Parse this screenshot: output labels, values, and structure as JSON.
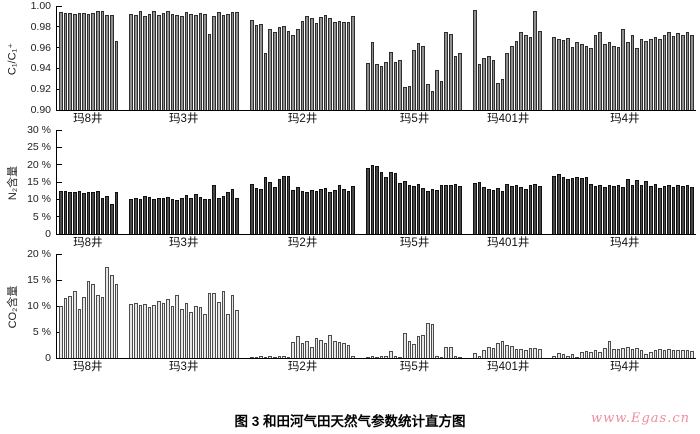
{
  "page": {
    "caption": "图 3  和田河气田天然气参数统计直方图",
    "watermark": "www.Egas.cn"
  },
  "colors": {
    "panel1_bar_fill": "#8f8f8f",
    "panel1_bar_edge": "#2e2e2e",
    "panel2_bar_fill": "#474747",
    "panel2_bar_edge": "#101010",
    "panel3_bar_fill": "#e6e6e6",
    "panel3_bar_edge": "#4c4c4c",
    "axis": "#000000",
    "watermark": "#ee8e9c"
  },
  "chart_data": {
    "type": "bar",
    "title": "图 3 和田河气田天然气参数统计直方图",
    "legend": "none",
    "grid": false,
    "categories": [
      "玛8井",
      "玛3井",
      "玛2井",
      "玛5井",
      "玛401井",
      "玛4井"
    ],
    "panels": [
      {
        "name": "c1-ratio",
        "ylabel": "C₁/C₁⁺",
        "ylim": [
          0.9,
          1.0
        ],
        "yticks": [
          {
            "v": 1.0,
            "label": "1.00"
          },
          {
            "v": 0.98,
            "label": "0.98"
          },
          {
            "v": 0.96,
            "label": "0.96"
          },
          {
            "v": 0.94,
            "label": "0.94"
          },
          {
            "v": 0.92,
            "label": "0.92"
          },
          {
            "v": 0.9,
            "label": "0.90"
          }
        ],
        "bar_fill": "#8f8f8f",
        "bar_edge": "#2e2e2e",
        "texture": "none",
        "series": [
          {
            "name": "玛8井",
            "values": [
              0.994,
              0.993,
              0.993,
              0.992,
              0.993,
              0.993,
              0.992,
              0.993,
              0.995,
              0.995,
              0.991,
              0.991,
              0.966
            ]
          },
          {
            "name": "玛3井",
            "values": [
              0.992,
              0.991,
              0.995,
              0.99,
              0.992,
              0.995,
              0.991,
              0.993,
              0.995,
              0.992,
              0.991,
              0.99,
              0.994,
              0.992,
              0.991,
              0.993,
              0.992,
              0.973,
              0.99,
              0.994,
              0.991,
              0.992,
              0.994,
              0.994
            ]
          },
          {
            "name": "玛2井",
            "values": [
              0.987,
              0.982,
              0.983,
              0.955,
              0.978,
              0.975,
              0.98,
              0.981,
              0.976,
              0.972,
              0.978,
              0.986,
              0.99,
              0.988,
              0.984,
              0.989,
              0.991,
              0.988,
              0.985,
              0.986,
              0.985,
              0.985,
              0.99
            ]
          },
          {
            "name": "玛5井",
            "values": [
              0.945,
              0.965,
              0.944,
              0.942,
              0.946,
              0.956,
              0.946,
              0.948,
              0.922,
              0.923,
              0.958,
              0.964,
              0.962,
              0.925,
              0.918,
              0.938,
              0.928,
              0.975,
              0.973,
              0.952,
              0.955
            ]
          },
          {
            "name": "玛401井",
            "values": [
              0.996,
              0.944,
              0.95,
              0.952,
              0.948,
              0.926,
              0.93,
              0.955,
              0.962,
              0.966,
              0.975,
              0.972,
              0.97,
              0.995,
              0.976
            ]
          },
          {
            "name": "玛4井",
            "values": [
              0.97,
              0.968,
              0.967,
              0.969,
              0.961,
              0.965,
              0.963,
              0.962,
              0.96,
              0.972,
              0.975,
              0.963,
              0.965,
              0.962,
              0.961,
              0.978,
              0.965,
              0.972,
              0.96,
              0.968,
              0.966,
              0.968,
              0.97,
              0.968,
              0.972,
              0.975,
              0.971,
              0.974,
              0.972,
              0.975,
              0.972
            ]
          }
        ]
      },
      {
        "name": "n2-content",
        "ylabel": "N₂含量",
        "ylim": [
          0,
          30
        ],
        "yticks": [
          {
            "v": 30,
            "label": "30 %"
          },
          {
            "v": 25,
            "label": "25 %"
          },
          {
            "v": 20,
            "label": "20 %"
          },
          {
            "v": 15,
            "label": "15 %"
          },
          {
            "v": 10,
            "label": "10 %"
          },
          {
            "v": 5,
            "label": "5 %"
          },
          {
            "v": 0,
            "label": "0"
          }
        ],
        "bar_fill": "#474747",
        "bar_edge": "#101010",
        "texture": "cross",
        "series": [
          {
            "name": "玛8井",
            "values": [
              12.5,
              12.3,
              12.2,
              12.0,
              12.5,
              11.8,
              12.0,
              12.2,
              12.4,
              10.5,
              11.0,
              8.6,
              12.0
            ]
          },
          {
            "name": "玛3井",
            "values": [
              10.2,
              10.4,
              10.2,
              11.0,
              10.8,
              10.2,
              10.5,
              10.3,
              10.8,
              10.2,
              9.8,
              10.5,
              11.2,
              10.3,
              11.5,
              10.8,
              10.2,
              10.0,
              14.2,
              10.5,
              11.0,
              12.2,
              13.0,
              10.5
            ]
          },
          {
            "name": "玛2井",
            "values": [
              14.5,
              13.2,
              13.0,
              16.5,
              15.0,
              13.5,
              15.8,
              16.8,
              16.7,
              12.8,
              13.5,
              12.5,
              12.0,
              12.8,
              12.5,
              13.0,
              13.2,
              12.2,
              12.8,
              14.2,
              13.0,
              12.5,
              13.8
            ]
          },
          {
            "name": "玛5井",
            "values": [
              19.0,
              20.0,
              19.5,
              18.0,
              16.5,
              17.8,
              17.5,
              14.8,
              15.2,
              14.2,
              13.8,
              14.5,
              13.2,
              12.5,
              13.0,
              12.8,
              14.0,
              14.2,
              14.0,
              14.3,
              13.8
            ]
          },
          {
            "name": "玛401井",
            "values": [
              14.8,
              15.0,
              13.5,
              13.0,
              12.8,
              13.2,
              12.5,
              14.5,
              13.8,
              14.2,
              13.5,
              13.0,
              14.0,
              14.3,
              13.8
            ]
          },
          {
            "name": "玛4井",
            "values": [
              16.8,
              17.2,
              16.5,
              16.0,
              16.2,
              16.5,
              16.3,
              16.4,
              14.5,
              13.8,
              14.0,
              13.5,
              14.2,
              13.8,
              14.0,
              13.5,
              15.8,
              14.2,
              15.5,
              14.0,
              15.2,
              13.8,
              14.5,
              13.2,
              13.8,
              14.2,
              13.5,
              14.0,
              13.8,
              14.2,
              13.5
            ]
          }
        ]
      },
      {
        "name": "co2-content",
        "ylabel": "CO₂含量",
        "ylim": [
          0,
          20
        ],
        "yticks": [
          {
            "v": 20,
            "label": "20 %"
          },
          {
            "v": 15,
            "label": "15 %"
          },
          {
            "v": 10,
            "label": "10 %"
          },
          {
            "v": 5,
            "label": "5 %"
          },
          {
            "v": 0,
            "label": "0"
          }
        ],
        "bar_fill": "#e6e6e6",
        "bar_edge": "#4c4c4c",
        "texture": "vlines",
        "series": [
          {
            "name": "玛8井",
            "values": [
              10.0,
              11.5,
              12.0,
              12.8,
              9.5,
              11.8,
              14.8,
              14.3,
              12.2,
              11.8,
              17.5,
              16.0,
              14.2
            ]
          },
          {
            "name": "玛3井",
            "values": [
              10.3,
              10.5,
              10.2,
              10.4,
              9.9,
              10.2,
              11.0,
              10.5,
              11.3,
              10.0,
              12.2,
              9.5,
              10.5,
              8.8,
              10.0,
              9.8,
              8.5,
              12.5,
              12.5,
              10.8,
              12.8,
              8.5,
              12.2,
              9.2
            ]
          },
          {
            "name": "玛2井",
            "values": [
              0.2,
              0.2,
              0.3,
              0.2,
              0.3,
              0.2,
              0.3,
              0.3,
              0.2,
              3.0,
              4.2,
              2.8,
              3.3,
              2.2,
              3.8,
              3.5,
              2.8,
              4.5,
              3.2,
              3.0,
              2.8,
              2.5,
              0.3
            ]
          },
          {
            "name": "玛5井",
            "values": [
              0.2,
              0.3,
              0.2,
              0.4,
              0.3,
              1.4,
              0.3,
              0.2,
              4.8,
              3.2,
              2.7,
              4.3,
              4.5,
              6.8,
              6.5,
              0.3,
              0.2,
              2.1,
              2.2,
              0.3,
              0.2
            ]
          },
          {
            "name": "玛401井",
            "values": [
              1.0,
              0.4,
              1.5,
              2.2,
              2.0,
              2.8,
              3.3,
              2.5,
              2.3,
              1.7,
              1.8,
              1.5,
              1.9,
              1.9,
              1.7
            ]
          },
          {
            "name": "玛4井",
            "values": [
              0.3,
              1.0,
              0.8,
              0.3,
              0.8,
              0.2,
              1.2,
              1.3,
              1.2,
              1.5,
              1.2,
              2.0,
              3.2,
              1.8,
              1.8,
              2.0,
              2.2,
              1.8,
              2.0,
              1.5,
              0.8,
              1.2,
              1.5,
              1.8,
              1.5,
              1.7,
              1.5,
              1.6,
              1.5,
              1.6,
              1.4
            ]
          }
        ]
      }
    ]
  }
}
